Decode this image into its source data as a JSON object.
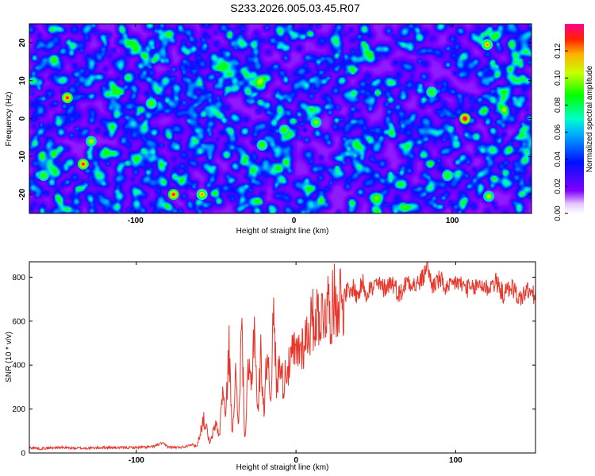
{
  "title": "S233.2026.005.03.45.R07",
  "colors": {
    "line": "#e8362b",
    "axis": "#000000",
    "background": "#ffffff"
  },
  "chart_data": [
    {
      "type": "heatmap",
      "title": "S233.2026.005.03.45.R07",
      "xlabel": "Height of straight line (km)",
      "ylabel": "Frequency (Hz)",
      "xlim": [
        -167,
        150
      ],
      "ylim": [
        -25,
        25
      ],
      "x_ticks": [
        {
          "value": -100,
          "label": "-100"
        },
        {
          "value": 0,
          "label": "0"
        },
        {
          "value": 100,
          "label": "100"
        }
      ],
      "y_ticks": [
        {
          "value": -20,
          "label": "-20"
        },
        {
          "value": -10,
          "label": "-10"
        },
        {
          "value": 0,
          "label": "0"
        },
        {
          "value": 10,
          "label": "10"
        },
        {
          "value": 20,
          "label": "20"
        }
      ],
      "colorbar": {
        "label": "Normalized spectral amplitude",
        "range": [
          0,
          0.14
        ],
        "ticks": [
          {
            "value": 0,
            "label": "0.00"
          },
          {
            "value": 0.02,
            "label": "0.02"
          },
          {
            "value": 0.04,
            "label": "0.04"
          },
          {
            "value": 0.06,
            "label": "0.06"
          },
          {
            "value": 0.08,
            "label": "0.08"
          },
          {
            "value": 0.1,
            "label": "0.10"
          },
          {
            "value": 0.12,
            "label": "0.12"
          }
        ]
      },
      "hot_spots": [
        {
          "x": 108,
          "y": 0,
          "v": 0.14
        },
        {
          "x": -143,
          "y": 5.5,
          "v": 0.13
        },
        {
          "x": -133,
          "y": -12,
          "v": 0.13
        },
        {
          "x": -76,
          "y": -20,
          "v": 0.13
        },
        {
          "x": -58,
          "y": -20,
          "v": 0.12
        },
        {
          "x": 122,
          "y": 19.5,
          "v": 0.12
        },
        {
          "x": 123,
          "y": -20.5,
          "v": 0.11
        },
        {
          "x": -128,
          "y": -6,
          "v": 0.11
        },
        {
          "x": 14,
          "y": -1,
          "v": 0.1
        },
        {
          "x": -6,
          "y": -3,
          "v": 0.09
        },
        {
          "x": -20,
          "y": -7,
          "v": 0.09
        },
        {
          "x": -90,
          "y": 4,
          "v": 0.09
        },
        {
          "x": 87,
          "y": 7,
          "v": 0.08
        },
        {
          "x": -158,
          "y": -15,
          "v": 0.08
        },
        {
          "x": 97,
          "y": -15,
          "v": 0.08
        }
      ]
    },
    {
      "type": "line",
      "xlabel": "Height of straight line (km)",
      "ylabel": "SNR (10 * v/v)",
      "xlim": [
        -167,
        150
      ],
      "ylim": [
        0,
        870
      ],
      "x_ticks": [
        {
          "value": -100,
          "label": "-100"
        },
        {
          "value": 0,
          "label": "0"
        },
        {
          "value": 100,
          "label": "100"
        }
      ],
      "y_ticks": [
        {
          "value": 0,
          "label": "0"
        },
        {
          "value": 200,
          "label": "200"
        },
        {
          "value": 400,
          "label": "400"
        },
        {
          "value": 600,
          "label": "600"
        },
        {
          "value": 800,
          "label": "800"
        }
      ],
      "series": [
        {
          "name": "SNR",
          "x": [
            -167,
            -160,
            -150,
            -140,
            -130,
            -120,
            -110,
            -100,
            -90,
            -84,
            -80,
            -76,
            -70,
            -66,
            -62,
            -58,
            -56,
            -54,
            -50,
            -48,
            -46,
            -44,
            -42,
            -40,
            -38,
            -36,
            -34,
            -32,
            -30,
            -28,
            -26,
            -24,
            -22,
            -20,
            -18,
            -16,
            -14,
            -12,
            -10,
            -8,
            -6,
            -4,
            -2,
            0,
            2,
            4,
            6,
            8,
            10,
            12,
            14,
            16,
            18,
            20,
            22,
            24,
            26,
            28,
            30,
            32,
            34,
            36,
            38,
            40,
            42,
            44,
            46,
            48,
            50,
            55,
            60,
            65,
            70,
            75,
            80,
            82,
            85,
            90,
            95,
            100,
            105,
            110,
            115,
            120,
            125,
            130,
            135,
            140,
            145,
            150
          ],
          "values": [
            25,
            20,
            25,
            22,
            22,
            25,
            24,
            25,
            28,
            45,
            28,
            25,
            28,
            40,
            30,
            155,
            110,
            40,
            140,
            70,
            300,
            150,
            500,
            80,
            360,
            120,
            590,
            40,
            370,
            300,
            610,
            160,
            450,
            180,
            480,
            250,
            620,
            280,
            450,
            300,
            400,
            380,
            460,
            440,
            480,
            490,
            520,
            560,
            600,
            610,
            640,
            620,
            660,
            680,
            640,
            700,
            690,
            720,
            700,
            740,
            720,
            760,
            710,
            740,
            780,
            720,
            760,
            740,
            770,
            750,
            780,
            720,
            790,
            760,
            800,
            870,
            760,
            790,
            740,
            780,
            760,
            740,
            770,
            750,
            780,
            720,
            760,
            700,
            740,
            710
          ]
        }
      ]
    }
  ]
}
